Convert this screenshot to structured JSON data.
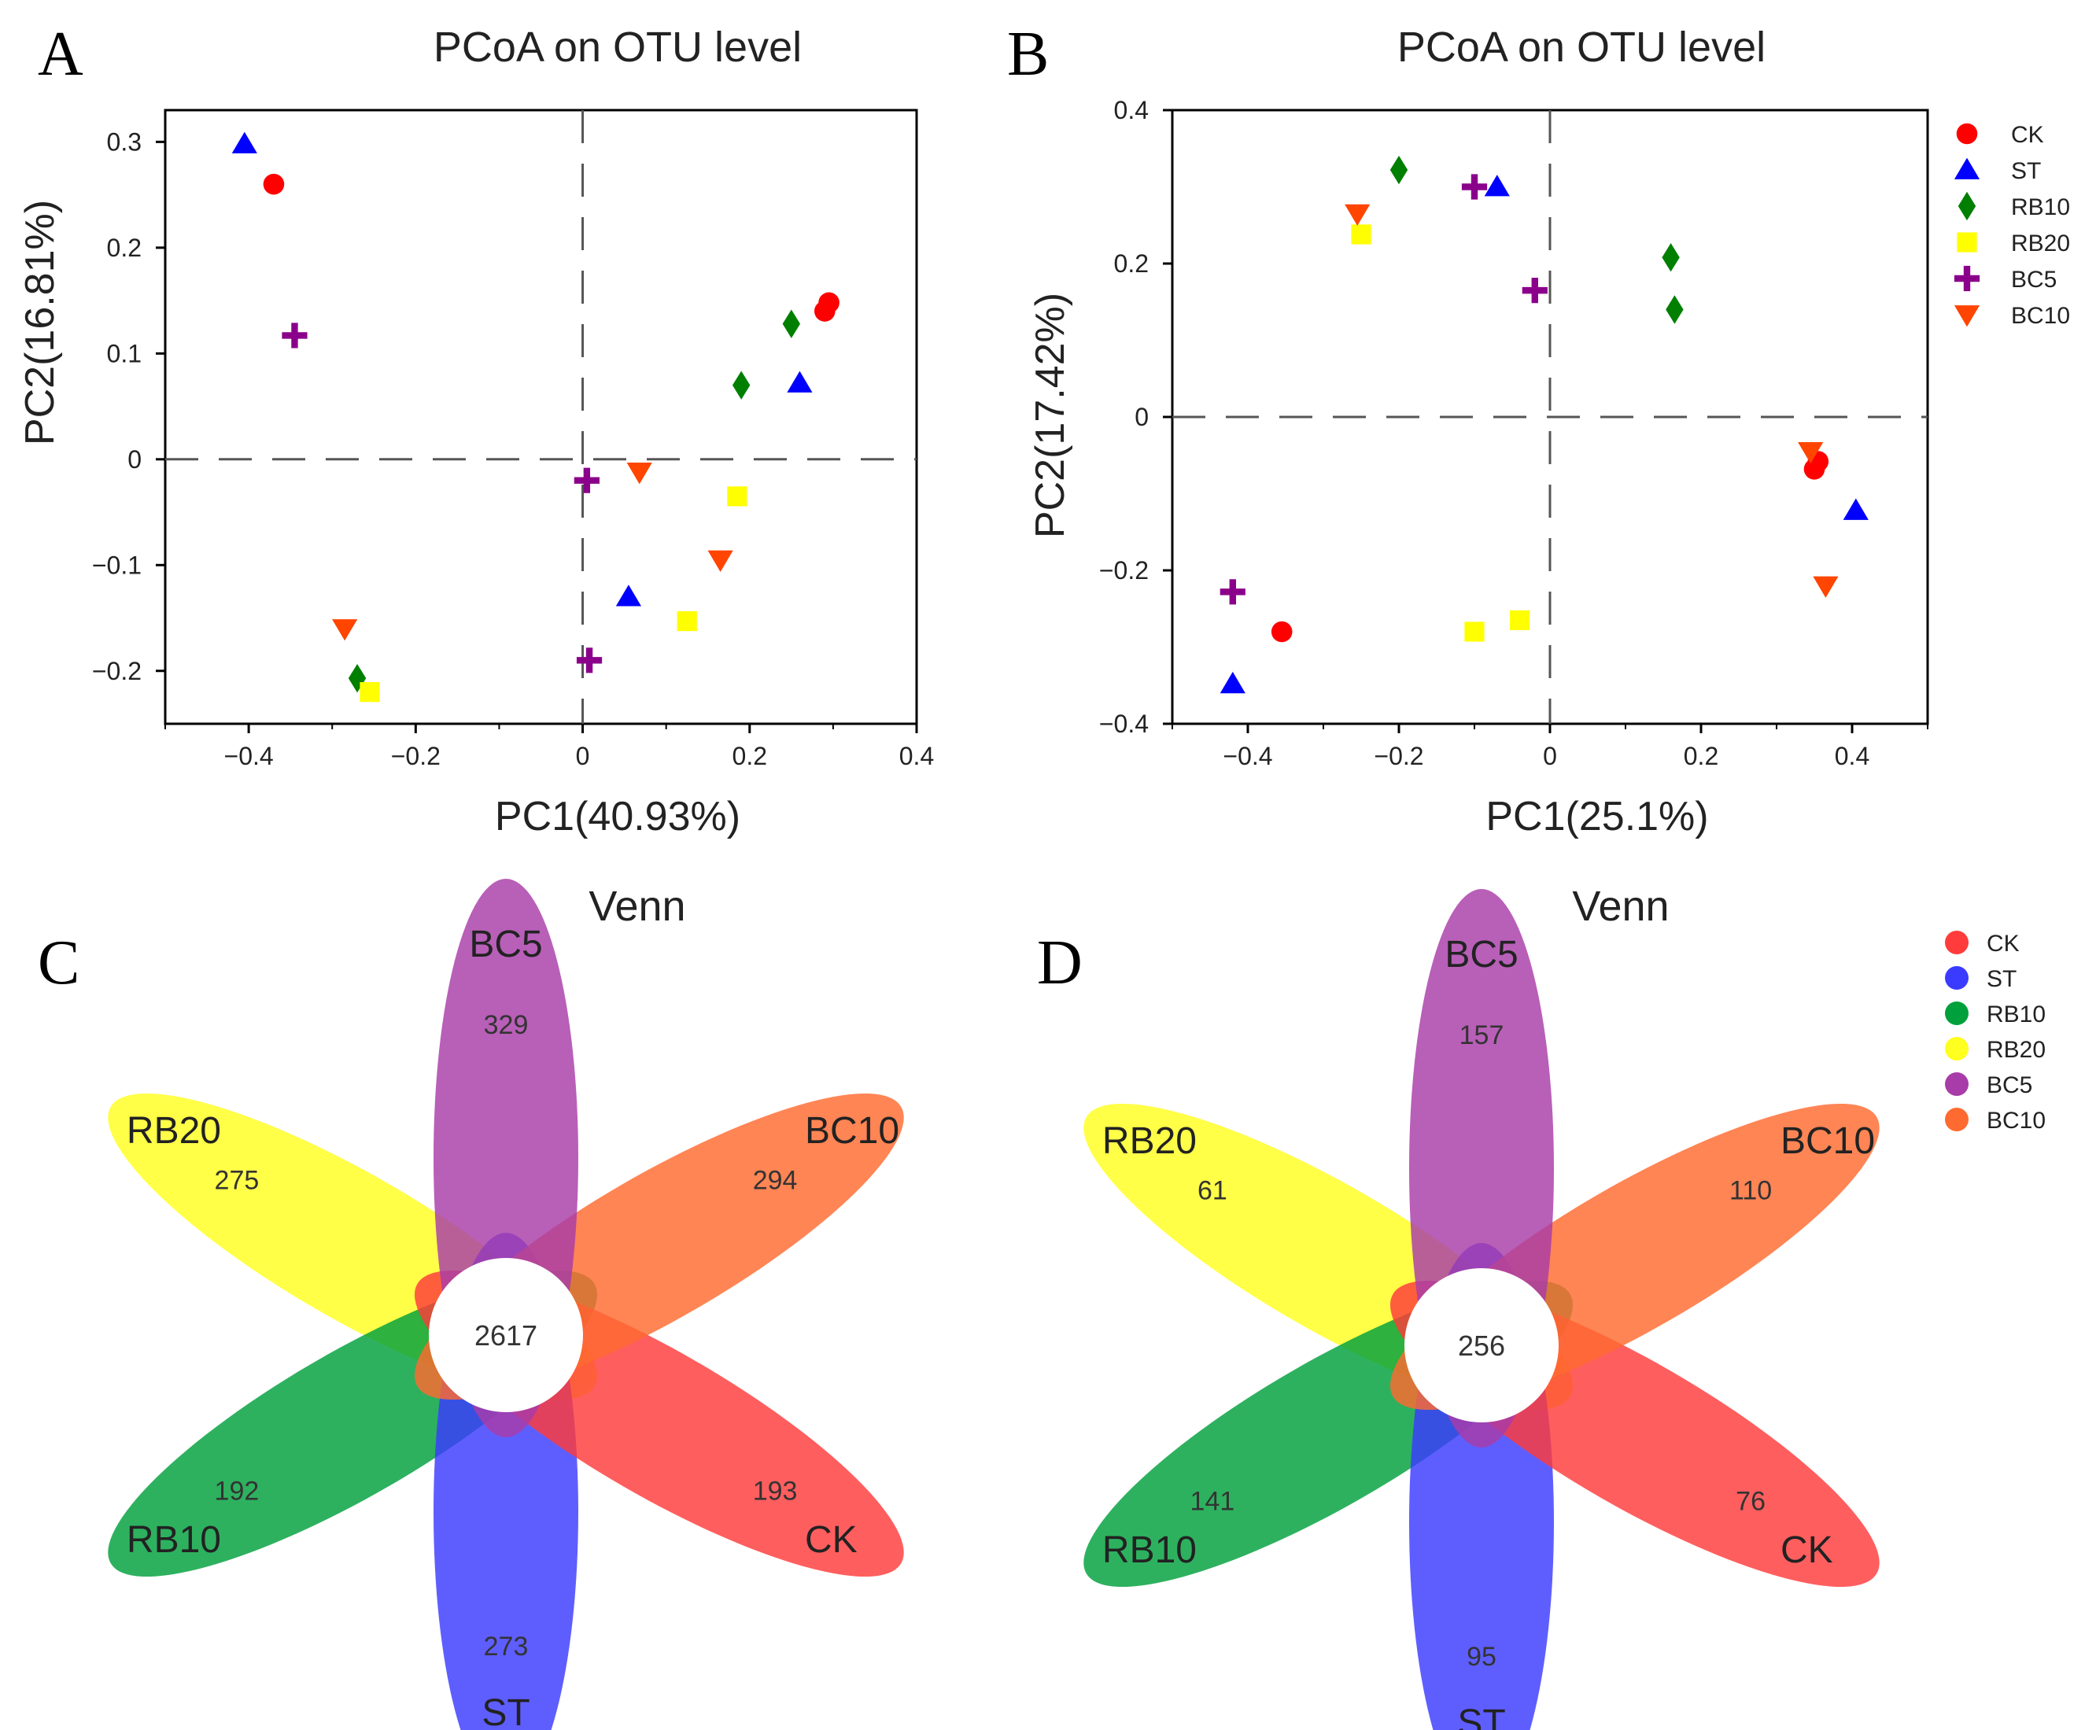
{
  "groups": [
    {
      "name": "CK",
      "marker": "circle",
      "color": "#ff0000",
      "venn_color": "#ff3b3b"
    },
    {
      "name": "ST",
      "marker": "triangle-up",
      "color": "#0000ff",
      "venn_color": "#3b3bff"
    },
    {
      "name": "RB10",
      "marker": "diamond",
      "color": "#007f00",
      "venn_color": "#00a03c"
    },
    {
      "name": "RB20",
      "marker": "square",
      "color": "#ffff00",
      "venn_color": "#ffff20"
    },
    {
      "name": "BC5",
      "marker": "plus",
      "color": "#8b008b",
      "venn_color": "#a83ca8"
    },
    {
      "name": "BC10",
      "marker": "triangle-down",
      "color": "#ff4500",
      "venn_color": "#ff6a30"
    }
  ],
  "chart_data": [
    {
      "type": "scatter",
      "panel": "A",
      "title": "PCoA on OTU level",
      "xlabel": "PC1(40.93%)",
      "ylabel": "PC2(16.81%)",
      "xlim": [
        -0.5,
        0.4
      ],
      "ylim": [
        -0.25,
        0.33
      ],
      "xticks": [
        -0.4,
        -0.2,
        0,
        0.2,
        0.4
      ],
      "xtick_labels": [
        "−0.4",
        "−0.2",
        "0",
        "0.2",
        "0.4"
      ],
      "yticks": [
        -0.2,
        -0.1,
        0,
        0.1,
        0.2,
        0.3
      ],
      "ytick_labels": [
        "−0.2",
        "−0.1",
        "0",
        "0.1",
        "0.2",
        "0.3"
      ],
      "points": [
        {
          "group": "CK",
          "x": -0.37,
          "y": 0.26
        },
        {
          "group": "CK",
          "x": 0.295,
          "y": 0.148
        },
        {
          "group": "CK",
          "x": 0.29,
          "y": 0.14
        },
        {
          "group": "ST",
          "x": -0.405,
          "y": 0.298
        },
        {
          "group": "ST",
          "x": 0.26,
          "y": 0.072
        },
        {
          "group": "ST",
          "x": 0.055,
          "y": -0.13
        },
        {
          "group": "RB10",
          "x": 0.25,
          "y": 0.128
        },
        {
          "group": "RB10",
          "x": 0.19,
          "y": 0.07
        },
        {
          "group": "RB10",
          "x": -0.27,
          "y": -0.207
        },
        {
          "group": "RB20",
          "x": 0.185,
          "y": -0.035
        },
        {
          "group": "RB20",
          "x": 0.125,
          "y": -0.153
        },
        {
          "group": "RB20",
          "x": -0.255,
          "y": -0.22
        },
        {
          "group": "BC5",
          "x": -0.345,
          "y": 0.117
        },
        {
          "group": "BC5",
          "x": 0.005,
          "y": -0.02
        },
        {
          "group": "BC5",
          "x": 0.008,
          "y": -0.19
        },
        {
          "group": "BC10",
          "x": 0.068,
          "y": -0.012
        },
        {
          "group": "BC10",
          "x": 0.165,
          "y": -0.095
        },
        {
          "group": "BC10",
          "x": -0.285,
          "y": -0.16
        }
      ]
    },
    {
      "type": "scatter",
      "panel": "B",
      "title": "PCoA on OTU level",
      "xlabel": "PC1(25.1%)",
      "ylabel": "PC2(17.42%)",
      "xlim": [
        -0.5,
        0.5
      ],
      "ylim": [
        -0.4,
        0.4
      ],
      "xticks": [
        -0.4,
        -0.2,
        0,
        0.2,
        0.4
      ],
      "xtick_labels": [
        "−0.4",
        "−0.2",
        "0",
        "0.2",
        "0.4"
      ],
      "yticks": [
        -0.4,
        -0.2,
        0,
        0.2,
        0.4
      ],
      "ytick_labels": [
        "−0.4",
        "−0.2",
        "0",
        "0.2",
        "0.4"
      ],
      "points": [
        {
          "group": "CK",
          "x": 0.355,
          "y": -0.058
        },
        {
          "group": "CK",
          "x": 0.35,
          "y": -0.068
        },
        {
          "group": "CK",
          "x": -0.355,
          "y": -0.28
        },
        {
          "group": "ST",
          "x": -0.07,
          "y": 0.3
        },
        {
          "group": "ST",
          "x": 0.405,
          "y": -0.122
        },
        {
          "group": "ST",
          "x": -0.42,
          "y": -0.348
        },
        {
          "group": "RB10",
          "x": -0.2,
          "y": 0.322
        },
        {
          "group": "RB10",
          "x": 0.16,
          "y": 0.208
        },
        {
          "group": "RB10",
          "x": 0.165,
          "y": 0.14
        },
        {
          "group": "RB20",
          "x": -0.25,
          "y": 0.238
        },
        {
          "group": "RB20",
          "x": -0.1,
          "y": -0.28
        },
        {
          "group": "RB20",
          "x": -0.04,
          "y": -0.265
        },
        {
          "group": "BC5",
          "x": -0.1,
          "y": 0.3
        },
        {
          "group": "BC5",
          "x": -0.02,
          "y": 0.165
        },
        {
          "group": "BC5",
          "x": -0.42,
          "y": -0.228
        },
        {
          "group": "BC10",
          "x": -0.255,
          "y": 0.265
        },
        {
          "group": "BC10",
          "x": 0.345,
          "y": -0.045
        },
        {
          "group": "BC10",
          "x": 0.365,
          "y": -0.22
        }
      ]
    },
    {
      "type": "venn",
      "panel": "C",
      "title": "Venn",
      "core": 2617,
      "sets": [
        {
          "name": "BC5",
          "unique": 329
        },
        {
          "name": "BC10",
          "unique": 294
        },
        {
          "name": "CK",
          "unique": 193
        },
        {
          "name": "ST",
          "unique": 273
        },
        {
          "name": "RB10",
          "unique": 192
        },
        {
          "name": "RB20",
          "unique": 275
        }
      ]
    },
    {
      "type": "venn",
      "panel": "D",
      "title": "Venn",
      "core": 256,
      "sets": [
        {
          "name": "BC5",
          "unique": 157
        },
        {
          "name": "BC10",
          "unique": 110
        },
        {
          "name": "CK",
          "unique": 76
        },
        {
          "name": "ST",
          "unique": 95
        },
        {
          "name": "RB10",
          "unique": 141
        },
        {
          "name": "RB20",
          "unique": 61
        }
      ]
    }
  ]
}
